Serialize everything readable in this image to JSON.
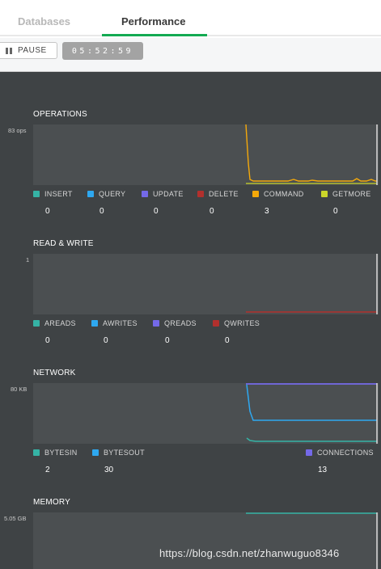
{
  "tabs": [
    {
      "label": "Databases"
    },
    {
      "label": "Performance"
    }
  ],
  "toolbar": {
    "pause_label": "PAUSE",
    "timer": "05:52:59"
  },
  "colors": {
    "insert": "#35b3a5",
    "query": "#2ea8f0",
    "update": "#7469e8",
    "delete": "#b2302d",
    "command": "#f5a90a",
    "getmore": "#cbd62a",
    "accent": "#13aa52"
  },
  "sections": {
    "operations": {
      "title": "OPERATIONS",
      "ymax": "83 ops",
      "legend": [
        {
          "label": "INSERT",
          "value": "0",
          "icon": "insert-swatch"
        },
        {
          "label": "QUERY",
          "value": "0",
          "icon": "query-swatch"
        },
        {
          "label": "UPDATE",
          "value": "0",
          "icon": "update-swatch"
        },
        {
          "label": "DELETE",
          "value": "0",
          "icon": "delete-swatch"
        },
        {
          "label": "COMMAND",
          "value": "3",
          "icon": "command-swatch"
        },
        {
          "label": "GETMORE",
          "value": "0",
          "icon": "getmore-swatch"
        }
      ]
    },
    "readwrite": {
      "title": "READ & WRITE",
      "ymax": "1",
      "legend": [
        {
          "label": "AREADS",
          "value": "0",
          "icon": "areads-swatch"
        },
        {
          "label": "AWRITES",
          "value": "0",
          "icon": "awrites-swatch"
        },
        {
          "label": "QREADS",
          "value": "0",
          "icon": "qreads-swatch"
        },
        {
          "label": "QWRITES",
          "value": "0",
          "icon": "qwrites-swatch"
        }
      ]
    },
    "network": {
      "title": "NETWORK",
      "ymax": "80 KB",
      "legend": [
        {
          "label": "BYTESIN",
          "value": "2",
          "icon": "bytesin-swatch"
        },
        {
          "label": "BYTESOUT",
          "value": "30",
          "icon": "bytesout-swatch"
        },
        {
          "label": "CONNECTIONS",
          "value": "13",
          "icon": "connections-swatch"
        }
      ]
    },
    "memory": {
      "title": "MEMORY",
      "ymax": "5.05 GB"
    }
  },
  "watermark": "https://blog.csdn.net/zhanwuguo8346"
}
